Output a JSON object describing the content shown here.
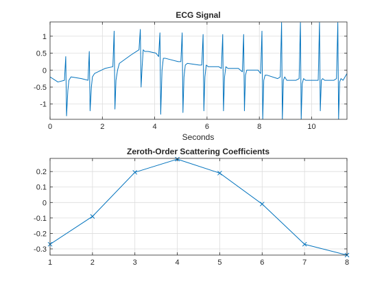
{
  "colors": {
    "series": "#0072BD",
    "grid": "#dcdcdc",
    "axis": "#262626"
  },
  "chart_data": [
    {
      "type": "line",
      "title": "ECG Signal",
      "xlabel": "Seconds",
      "ylabel": "",
      "xlim": [
        0,
        11.35
      ],
      "ylim": [
        -1.45,
        1.42
      ],
      "grid": true,
      "x_ticks": [
        0,
        2,
        4,
        6,
        8,
        10
      ],
      "y_ticks": [
        -1,
        -0.5,
        0,
        0.5,
        1
      ],
      "x_tick_labels": [
        "0",
        "2",
        "4",
        "6",
        "8",
        "10"
      ],
      "y_tick_labels": [
        "-1",
        "-0.5",
        "0",
        "0.5",
        "1"
      ],
      "series": [
        {
          "x": [
            0,
            0.3,
            0.55,
            0.6,
            0.63,
            0.68,
            0.72,
            0.8,
            1.2,
            1.45,
            1.5,
            1.53,
            1.58,
            1.62,
            1.7,
            2.1,
            2.4,
            2.45,
            2.48,
            2.52,
            2.58,
            2.65,
            3.1,
            3.4,
            3.45,
            3.48,
            3.52,
            3.56,
            3.62,
            3.75,
            4.05,
            4.15,
            4.2,
            4.23,
            4.28,
            4.33,
            4.4,
            4.9,
            5.0,
            5.05,
            5.08,
            5.12,
            5.17,
            5.25,
            5.7,
            5.8,
            5.85,
            5.88,
            5.92,
            5.97,
            6.05,
            6.45,
            6.55,
            6.6,
            6.63,
            6.67,
            6.72,
            6.8,
            7.2,
            7.35,
            7.4,
            7.43,
            7.47,
            7.52,
            7.6,
            7.95,
            8.05,
            8.1,
            8.13,
            8.17,
            8.22,
            8.3,
            8.7,
            8.8,
            8.85,
            8.88,
            8.92,
            8.97,
            9.05,
            9.4,
            9.52,
            9.57,
            9.6,
            9.64,
            9.69,
            9.77,
            10.1,
            10.25,
            10.3,
            10.33,
            10.37,
            10.42,
            10.5,
            10.85,
            10.95,
            11.0,
            11.03,
            11.07,
            11.12,
            11.2,
            11.35
          ],
          "y": [
            -0.2,
            -0.35,
            -0.3,
            0.4,
            -1.35,
            -0.6,
            -0.3,
            -0.2,
            -0.25,
            -0.3,
            0.55,
            -1.2,
            -0.5,
            -0.2,
            -0.1,
            0.05,
            0.1,
            1.15,
            -1.15,
            -0.3,
            0.0,
            0.2,
            0.45,
            0.6,
            1.2,
            -0.5,
            0.1,
            0.6,
            0.55,
            0.55,
            0.5,
            0.4,
            1.1,
            -1.3,
            0.0,
            0.35,
            0.35,
            0.25,
            0.25,
            1.1,
            -1.25,
            -0.2,
            0.15,
            0.2,
            0.15,
            0.15,
            1.05,
            -1.2,
            -0.2,
            0.15,
            0.1,
            0.1,
            0.05,
            1.05,
            -1.2,
            -0.2,
            0.1,
            0.05,
            0.05,
            -0.05,
            1.05,
            -1.2,
            -0.15,
            0.0,
            0.0,
            0.0,
            -0.1,
            1.15,
            -1.45,
            -0.3,
            -0.15,
            -0.15,
            -0.25,
            -0.2,
            1.4,
            -1.45,
            -0.3,
            -0.2,
            -0.3,
            -0.3,
            -0.25,
            1.4,
            -1.45,
            -0.4,
            -0.25,
            -0.3,
            -0.3,
            -0.3,
            1.4,
            -1.2,
            -0.3,
            -0.25,
            -0.3,
            -0.3,
            -0.25,
            1.4,
            -1.45,
            -0.35,
            -0.25,
            -0.3,
            -0.1
          ]
        }
      ]
    },
    {
      "type": "line",
      "title": "Zeroth-Order Scattering Coefficients",
      "xlabel": "",
      "ylabel": "",
      "xlim": [
        1,
        8
      ],
      "ylim": [
        -0.34,
        0.285
      ],
      "grid": true,
      "marker": "x",
      "x_ticks": [
        1,
        2,
        3,
        4,
        5,
        6,
        7,
        8
      ],
      "y_ticks": [
        -0.3,
        -0.2,
        -0.1,
        0,
        0.1,
        0.2
      ],
      "x_tick_labels": [
        "1",
        "2",
        "3",
        "4",
        "5",
        "6",
        "7",
        "8"
      ],
      "y_tick_labels": [
        "-0.3",
        "-0.2",
        "-0.1",
        "0",
        "0.1",
        "0.2"
      ],
      "series": [
        {
          "x": [
            1,
            2,
            3,
            4,
            5,
            6,
            7,
            8
          ],
          "y": [
            -0.27,
            -0.09,
            0.195,
            0.28,
            0.19,
            -0.01,
            -0.27,
            -0.34
          ]
        }
      ]
    }
  ]
}
